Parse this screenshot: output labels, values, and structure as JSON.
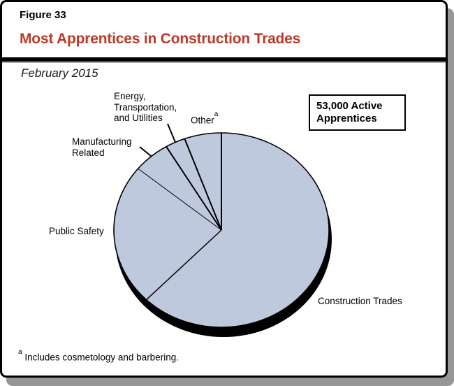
{
  "header": {
    "figure_number": "Figure 33",
    "title": "Most Apprentices in Construction Trades",
    "subtitle": "February 2015",
    "title_color": "#BB3A29"
  },
  "callout": {
    "text": "53,000 Active\nApprentices"
  },
  "labels": {
    "energy": "Energy,\nTransportation,\nand Utilities",
    "other": "Other",
    "other_sup": "a",
    "manufacturing": "Manufacturing\nRelated",
    "public_safety": "Public Safety",
    "construction": "Construction Trades"
  },
  "footnote": {
    "marker": "a",
    "text": "Includes cosmetology and barbering."
  },
  "chart_data": {
    "type": "pie",
    "title": "Most Apprentices in Construction Trades",
    "subtitle": "February 2015",
    "annotation": "53,000 Active Apprentices",
    "start_angle_deg": 90,
    "direction": "counterclockwise",
    "fill_color": "#BFC9DD",
    "outline_color": "#000000",
    "shadow_color": "#000000",
    "slices": [
      {
        "label": "Other",
        "pct": 6.1
      },
      {
        "label": "Energy, Transportation, and Utilities",
        "pct": 3.2
      },
      {
        "label": "Manufacturing Related",
        "pct": 5.6
      },
      {
        "label": "Public Safety",
        "pct": 22.0
      },
      {
        "label": "Construction Trades",
        "pct": 63.1
      }
    ]
  }
}
